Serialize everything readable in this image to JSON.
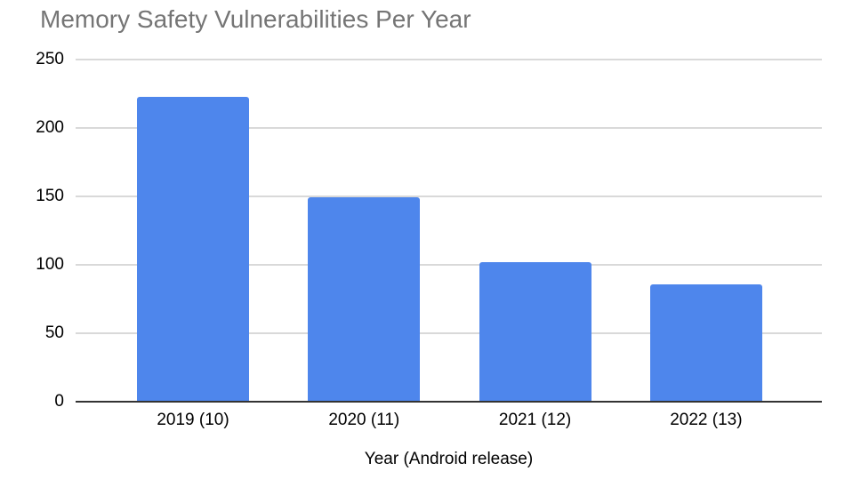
{
  "chart_data": {
    "type": "bar",
    "title": "Memory Safety Vulnerabilities Per Year",
    "xlabel": "Year (Android release)",
    "ylabel": "",
    "categories": [
      "2019 (10)",
      "2020 (11)",
      "2021 (12)",
      "2022 (13)"
    ],
    "values": [
      222,
      149,
      101,
      85
    ],
    "ylim": [
      0,
      250
    ],
    "yticks": [
      0,
      50,
      100,
      150,
      200,
      250
    ],
    "grid": true,
    "legend": "none",
    "colors": {
      "bar": "#4e86ec",
      "title_text": "#757575",
      "axis_text": "#000000",
      "gridline": "#d9d9d9",
      "zero_axis_line": "#333333",
      "background": "#ffffff"
    }
  }
}
